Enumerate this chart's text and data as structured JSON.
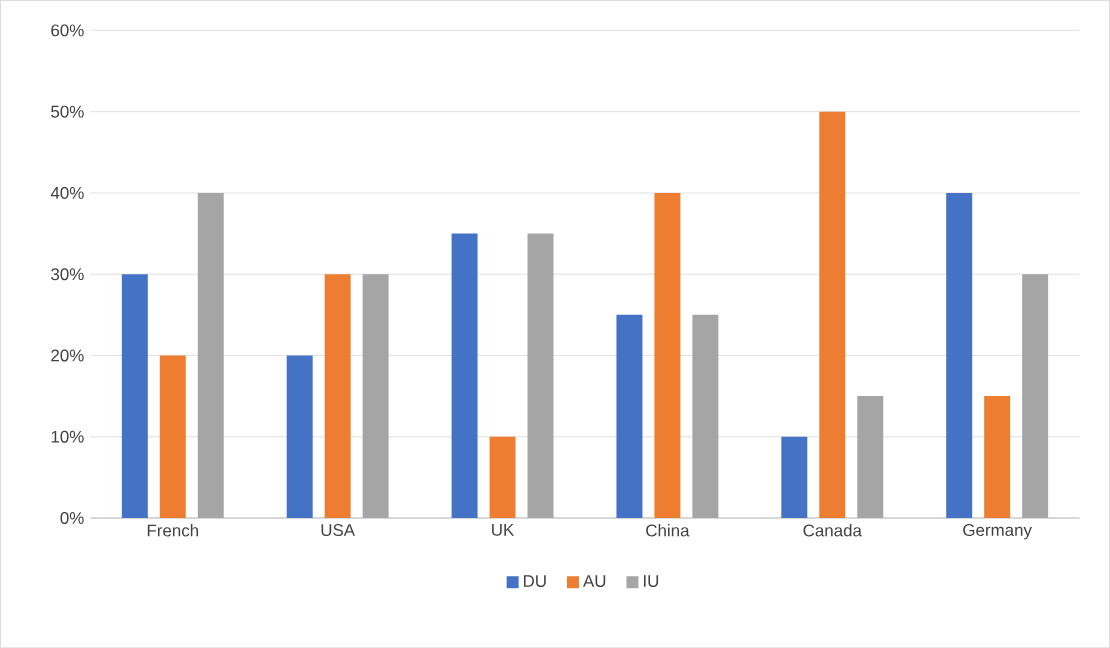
{
  "chart_data": {
    "type": "bar",
    "categories": [
      "French",
      "USA",
      "UK",
      "China",
      "Canada",
      "Germany"
    ],
    "series": [
      {
        "name": "DU",
        "color": "#4472c4",
        "values": [
          30,
          20,
          35,
          25,
          10,
          40
        ]
      },
      {
        "name": "AU",
        "color": "#ed7d31",
        "values": [
          20,
          30,
          10,
          40,
          50,
          15
        ]
      },
      {
        "name": "IU",
        "color": "#a5a5a5",
        "values": [
          40,
          30,
          35,
          25,
          15,
          30
        ]
      }
    ],
    "ylim": [
      0,
      60
    ],
    "yticks": [
      {
        "value": 0,
        "label": "0%"
      },
      {
        "value": 10,
        "label": "10%"
      },
      {
        "value": 20,
        "label": "20%"
      },
      {
        "value": 30,
        "label": "30%"
      },
      {
        "value": 40,
        "label": "40%"
      },
      {
        "value": 50,
        "label": "50%"
      },
      {
        "value": 60,
        "label": "60%"
      }
    ],
    "grid": "y",
    "legend": "bottom"
  }
}
